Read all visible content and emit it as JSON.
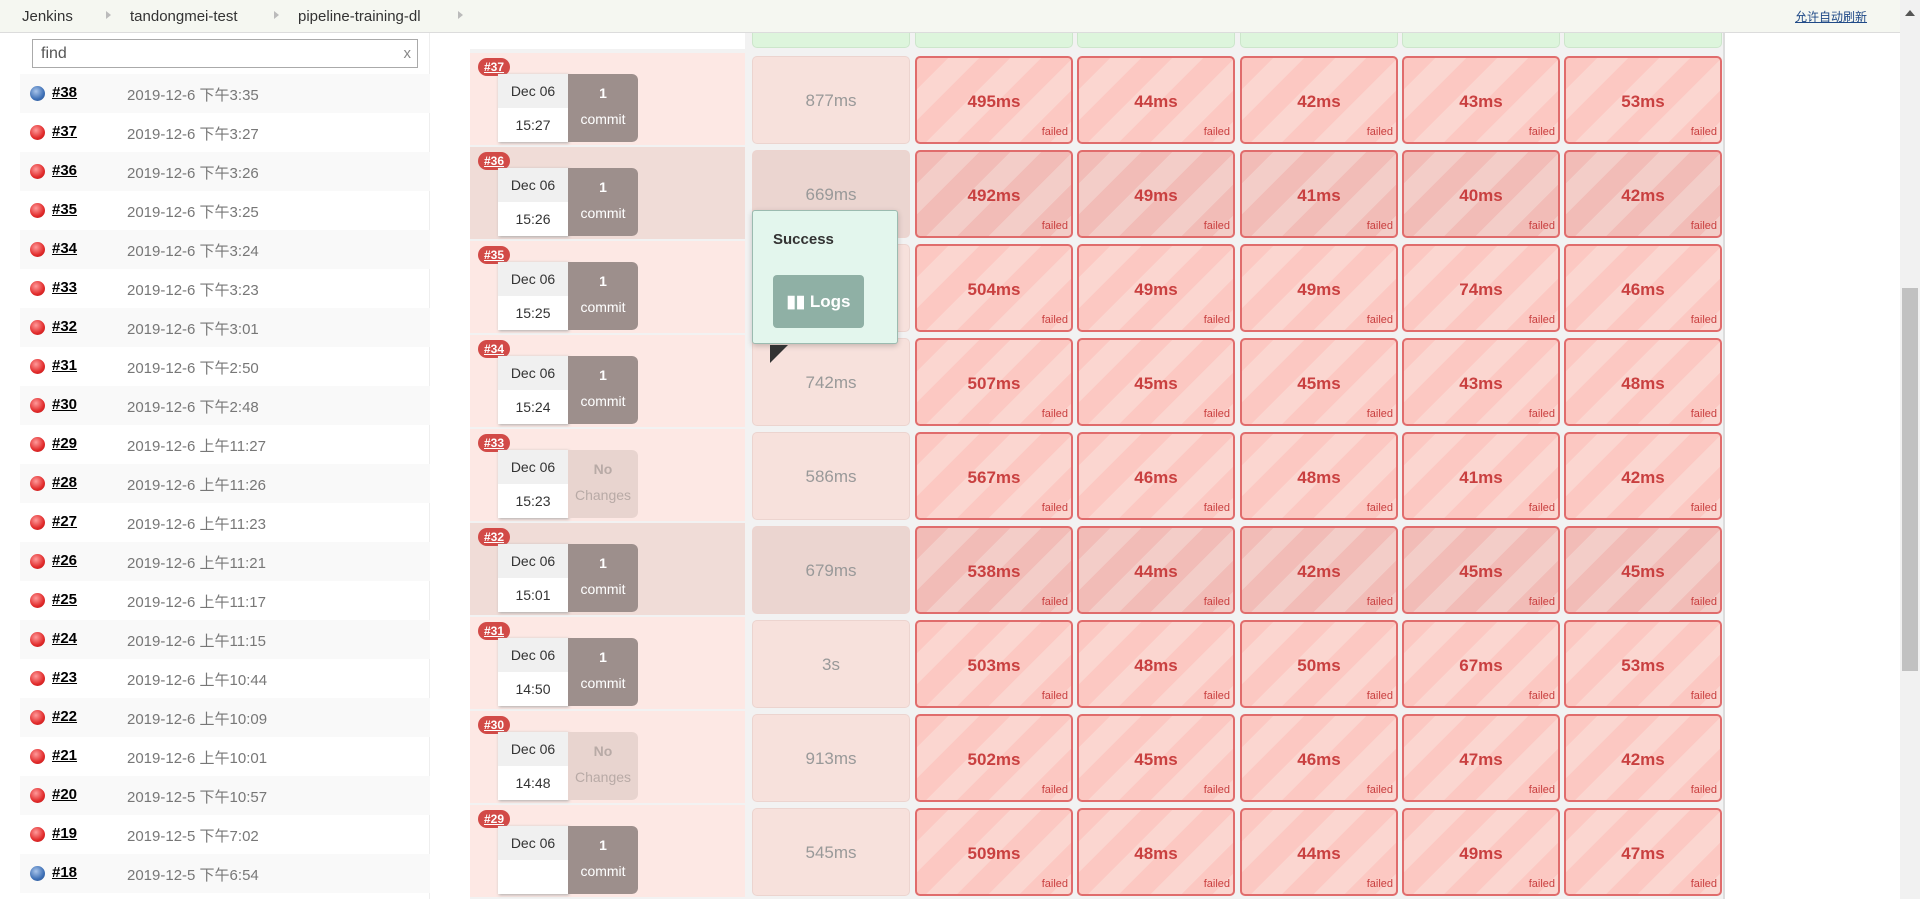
{
  "breadcrumbs": [
    "Jenkins",
    "tandongmei-test",
    "pipeline-training-dl"
  ],
  "auto_refresh": "允许自动刷新",
  "search": {
    "placeholder": "find",
    "value": "find",
    "clear": "x"
  },
  "history": [
    {
      "num": "#38",
      "date": "2019-12-6 下午3:35",
      "status": "blue"
    },
    {
      "num": "#37",
      "date": "2019-12-6 下午3:27",
      "status": "red"
    },
    {
      "num": "#36",
      "date": "2019-12-6 下午3:26",
      "status": "red"
    },
    {
      "num": "#35",
      "date": "2019-12-6 下午3:25",
      "status": "red"
    },
    {
      "num": "#34",
      "date": "2019-12-6 下午3:24",
      "status": "red"
    },
    {
      "num": "#33",
      "date": "2019-12-6 下午3:23",
      "status": "red"
    },
    {
      "num": "#32",
      "date": "2019-12-6 下午3:01",
      "status": "red"
    },
    {
      "num": "#31",
      "date": "2019-12-6 下午2:50",
      "status": "red"
    },
    {
      "num": "#30",
      "date": "2019-12-6 下午2:48",
      "status": "red"
    },
    {
      "num": "#29",
      "date": "2019-12-6 上午11:27",
      "status": "red"
    },
    {
      "num": "#28",
      "date": "2019-12-6 上午11:26",
      "status": "red"
    },
    {
      "num": "#27",
      "date": "2019-12-6 上午11:23",
      "status": "red"
    },
    {
      "num": "#26",
      "date": "2019-12-6 上午11:21",
      "status": "red"
    },
    {
      "num": "#25",
      "date": "2019-12-6 上午11:17",
      "status": "red"
    },
    {
      "num": "#24",
      "date": "2019-12-6 上午11:15",
      "status": "red"
    },
    {
      "num": "#23",
      "date": "2019-12-6 上午10:44",
      "status": "red"
    },
    {
      "num": "#22",
      "date": "2019-12-6 上午10:09",
      "status": "red"
    },
    {
      "num": "#21",
      "date": "2019-12-6 上午10:01",
      "status": "red"
    },
    {
      "num": "#20",
      "date": "2019-12-5 下午10:57",
      "status": "red"
    },
    {
      "num": "#19",
      "date": "2019-12-5 下午7:02",
      "status": "red"
    },
    {
      "num": "#18",
      "date": "2019-12-5 下午6:54",
      "status": "blue"
    }
  ],
  "failed_label": "failed",
  "builds": [
    {
      "num": "#37",
      "date": "Dec 06",
      "time": "15:27",
      "commits": "1",
      "commit_label": "commit",
      "highlight": false,
      "first": "877ms",
      "stages": [
        "495ms",
        "44ms",
        "42ms",
        "43ms",
        "53ms"
      ]
    },
    {
      "num": "#36",
      "date": "Dec 06",
      "time": "15:26",
      "commits": "1",
      "commit_label": "commit",
      "highlight": true,
      "first": "669ms",
      "stages": [
        "492ms",
        "49ms",
        "41ms",
        "40ms",
        "42ms"
      ]
    },
    {
      "num": "#35",
      "date": "Dec 06",
      "time": "15:25",
      "commits": "1",
      "commit_label": "commit",
      "highlight": false,
      "first": "",
      "stages": [
        "504ms",
        "49ms",
        "49ms",
        "74ms",
        "46ms"
      ]
    },
    {
      "num": "#34",
      "date": "Dec 06",
      "time": "15:24",
      "commits": "1",
      "commit_label": "commit",
      "highlight": false,
      "first": "742ms",
      "stages": [
        "507ms",
        "45ms",
        "45ms",
        "43ms",
        "48ms"
      ]
    },
    {
      "num": "#33",
      "date": "Dec 06",
      "time": "15:23",
      "commits": "No",
      "commit_label": "Changes",
      "nochange": true,
      "highlight": false,
      "first": "586ms",
      "stages": [
        "567ms",
        "46ms",
        "48ms",
        "41ms",
        "42ms"
      ]
    },
    {
      "num": "#32",
      "date": "Dec 06",
      "time": "15:01",
      "commits": "1",
      "commit_label": "commit",
      "highlight": true,
      "first": "679ms",
      "stages": [
        "538ms",
        "44ms",
        "42ms",
        "45ms",
        "45ms"
      ]
    },
    {
      "num": "#31",
      "date": "Dec 06",
      "time": "14:50",
      "commits": "1",
      "commit_label": "commit",
      "highlight": false,
      "first": "3s",
      "stages": [
        "503ms",
        "48ms",
        "50ms",
        "67ms",
        "53ms"
      ]
    },
    {
      "num": "#30",
      "date": "Dec 06",
      "time": "14:48",
      "commits": "No",
      "commit_label": "Changes",
      "nochange": true,
      "highlight": false,
      "first": "913ms",
      "stages": [
        "502ms",
        "45ms",
        "46ms",
        "47ms",
        "42ms"
      ]
    },
    {
      "num": "#29",
      "date": "Dec 06",
      "time": "",
      "commits": "1",
      "commit_label": "commit",
      "highlight": false,
      "first": "545ms",
      "stages": [
        "509ms",
        "48ms",
        "44ms",
        "49ms",
        "47ms"
      ]
    }
  ],
  "tooltip": {
    "title": "Success",
    "logs": "Logs"
  }
}
